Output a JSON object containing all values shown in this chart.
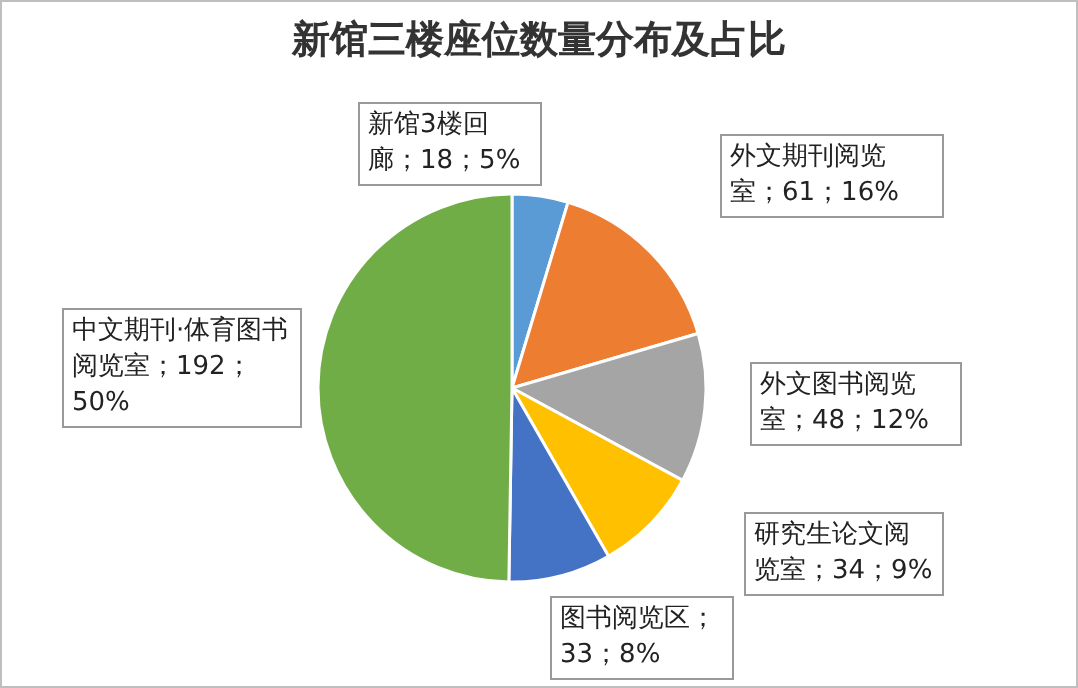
{
  "chart_data": {
    "type": "pie",
    "title": "新馆三楼座位数量分布及占比",
    "categories": [
      "新馆3楼回廊",
      "外文期刊阅览室",
      "外文图书阅览室",
      "研究生论文阅览室",
      "图书阅览区",
      "中文期刊·体育图书阅览室"
    ],
    "values": [
      18,
      61,
      48,
      34,
      33,
      192
    ],
    "colors": [
      "#5b9bd5",
      "#ed7d31",
      "#a5a5a5",
      "#ffc000",
      "#4472c4",
      "#70ad47"
    ],
    "value_labels": [
      "；18；5%",
      "；61；16%",
      "；48；12%",
      "；34；9%",
      "；33；8%",
      "；192；50%"
    ],
    "legend": false
  }
}
